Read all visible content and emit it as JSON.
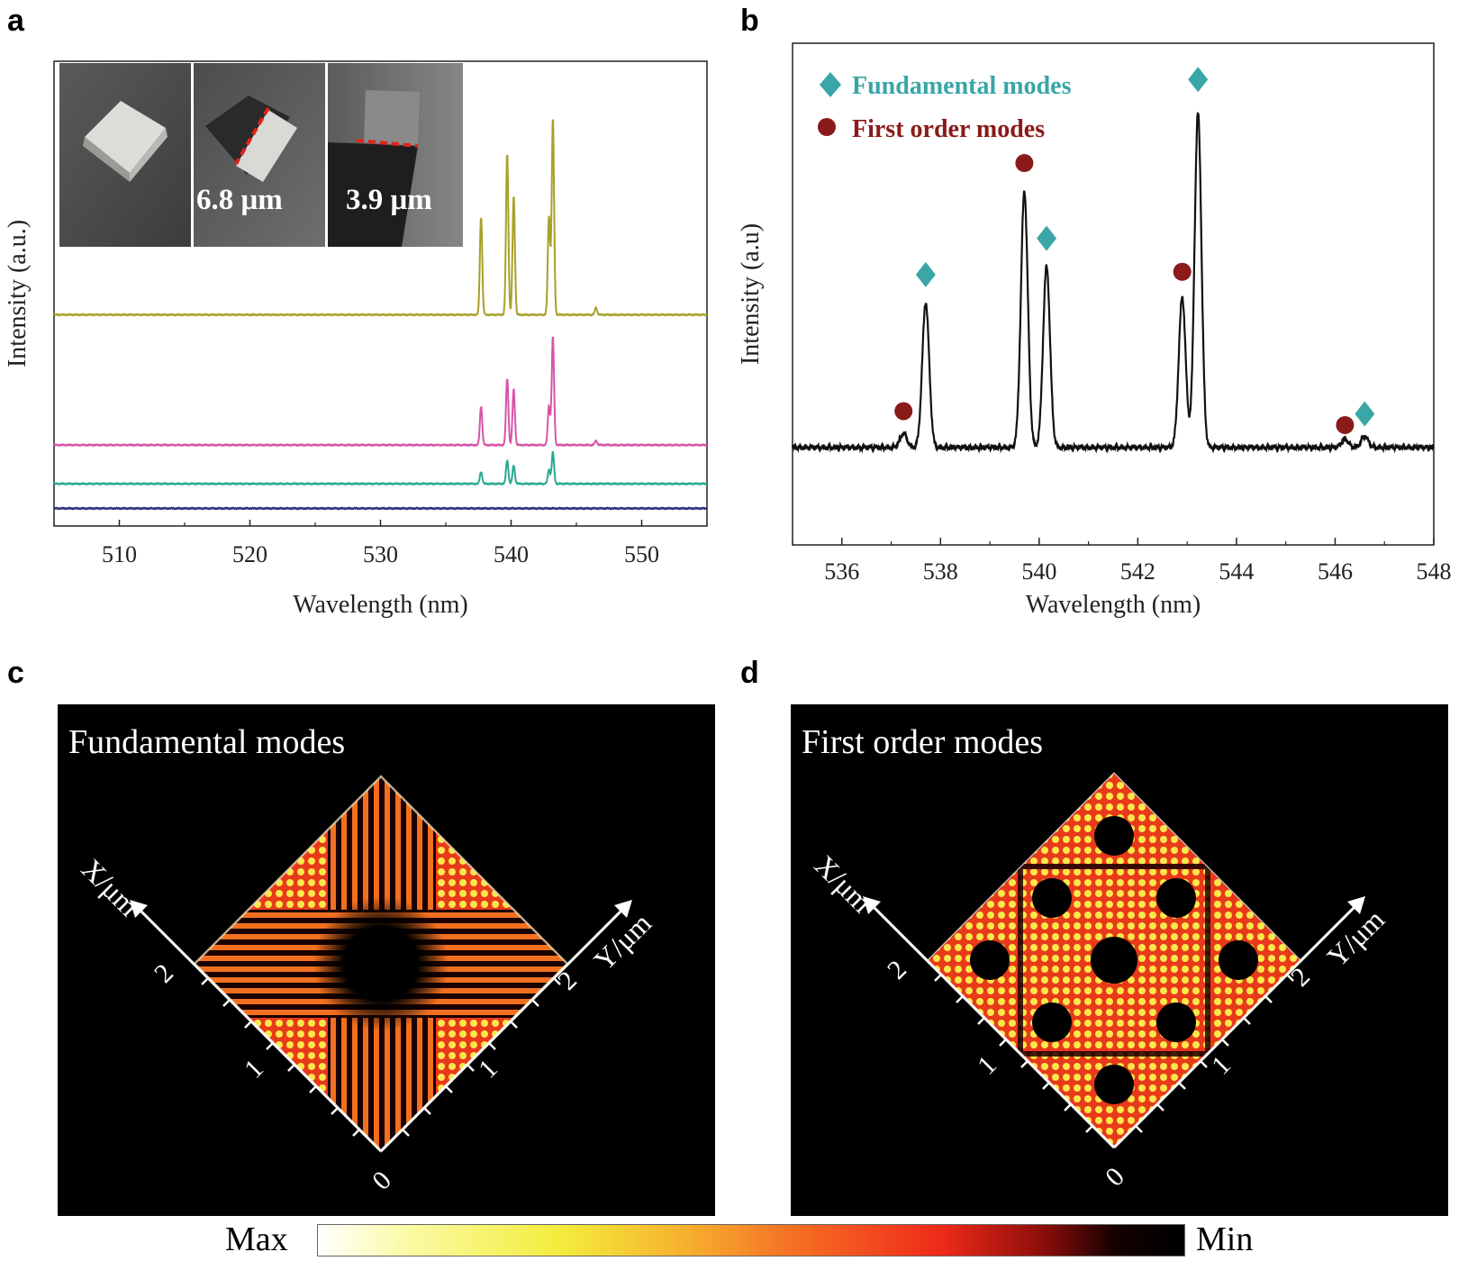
{
  "panels": {
    "a": "a",
    "b": "b",
    "c": "c",
    "d": "d"
  },
  "chart_data": [
    {
      "id": "a",
      "type": "line",
      "title": "",
      "xlabel": "Wavelength (nm)",
      "ylabel": "Intensity (a.u.)",
      "xlim": [
        505,
        555
      ],
      "xticks": [
        510,
        520,
        530,
        540,
        550
      ],
      "x_tick_labels": [
        "510",
        "520",
        "530",
        "540",
        "550"
      ],
      "y_units": "arbitrary (offset traces)",
      "series": [
        {
          "name": "trace-1",
          "color": "#a8a12a",
          "baseline": 3.0,
          "peaks": [
            {
              "x": 537.7,
              "h": 1.4
            },
            {
              "x": 539.7,
              "h": 2.3
            },
            {
              "x": 540.2,
              "h": 1.7
            },
            {
              "x": 542.9,
              "h": 1.4
            },
            {
              "x": 543.2,
              "h": 2.8
            },
            {
              "x": 546.5,
              "h": 0.1
            }
          ]
        },
        {
          "name": "trace-2",
          "color": "#d655a8",
          "baseline": 1.15,
          "peaks": [
            {
              "x": 537.7,
              "h": 0.55
            },
            {
              "x": 539.7,
              "h": 0.95
            },
            {
              "x": 540.2,
              "h": 0.8
            },
            {
              "x": 542.9,
              "h": 0.55
            },
            {
              "x": 543.2,
              "h": 1.55
            },
            {
              "x": 546.5,
              "h": 0.06
            }
          ]
        },
        {
          "name": "trace-3",
          "color": "#2aa990",
          "baseline": 0.6,
          "peaks": [
            {
              "x": 537.7,
              "h": 0.17
            },
            {
              "x": 539.7,
              "h": 0.33
            },
            {
              "x": 540.2,
              "h": 0.26
            },
            {
              "x": 542.9,
              "h": 0.2
            },
            {
              "x": 543.2,
              "h": 0.45
            }
          ]
        },
        {
          "name": "trace-4",
          "color": "#2b2e7a",
          "baseline": 0.25,
          "peaks": []
        }
      ],
      "inset": {
        "captions": [
          "6.8 μm",
          "3.9 μm"
        ]
      }
    },
    {
      "id": "b",
      "type": "line",
      "title": "",
      "xlabel": "Wavelength (nm)",
      "ylabel": "Intensity (a.u)",
      "xlim": [
        535,
        548
      ],
      "xticks": [
        536,
        538,
        540,
        542,
        544,
        546,
        548
      ],
      "x_tick_labels": [
        "536",
        "538",
        "540",
        "542",
        "544",
        "546",
        "548"
      ],
      "legend": [
        {
          "label": "Fundamental modes",
          "marker": "diamond",
          "color": "#3aa6a6"
        },
        {
          "label": "First order modes",
          "marker": "circle",
          "color": "#8b1a1a"
        }
      ],
      "series": [
        {
          "name": "spectrum",
          "color": "#111111",
          "baseline": 0.0,
          "peaks": [
            {
              "x": 537.25,
              "h": 0.05
            },
            {
              "x": 537.7,
              "h": 0.52
            },
            {
              "x": 539.7,
              "h": 0.92
            },
            {
              "x": 540.15,
              "h": 0.65
            },
            {
              "x": 542.9,
              "h": 0.54
            },
            {
              "x": 543.22,
              "h": 1.2
            },
            {
              "x": 546.2,
              "h": 0.03
            },
            {
              "x": 546.6,
              "h": 0.04
            }
          ]
        }
      ],
      "fundamental_markers": [
        {
          "x": 537.7,
          "y": 0.62
        },
        {
          "x": 540.15,
          "y": 0.75
        },
        {
          "x": 543.22,
          "y": 1.32
        },
        {
          "x": 546.6,
          "y": 0.12
        }
      ],
      "first_order_markers": [
        {
          "x": 537.25,
          "y": 0.13
        },
        {
          "x": 539.7,
          "y": 1.02
        },
        {
          "x": 542.9,
          "y": 0.63
        },
        {
          "x": 546.2,
          "y": 0.08
        }
      ]
    }
  ],
  "maps": {
    "c": {
      "title": "Fundamental modes",
      "x_axis": "X/μm",
      "y_axis": "Y/μm",
      "ticks": [
        "0",
        "1",
        "2"
      ]
    },
    "d": {
      "title": "First order modes",
      "x_axis": "X/μm",
      "y_axis": "Y/μm",
      "ticks": [
        "0",
        "1",
        "2"
      ]
    }
  },
  "colorbar": {
    "max_label": "Max",
    "min_label": "Min"
  }
}
